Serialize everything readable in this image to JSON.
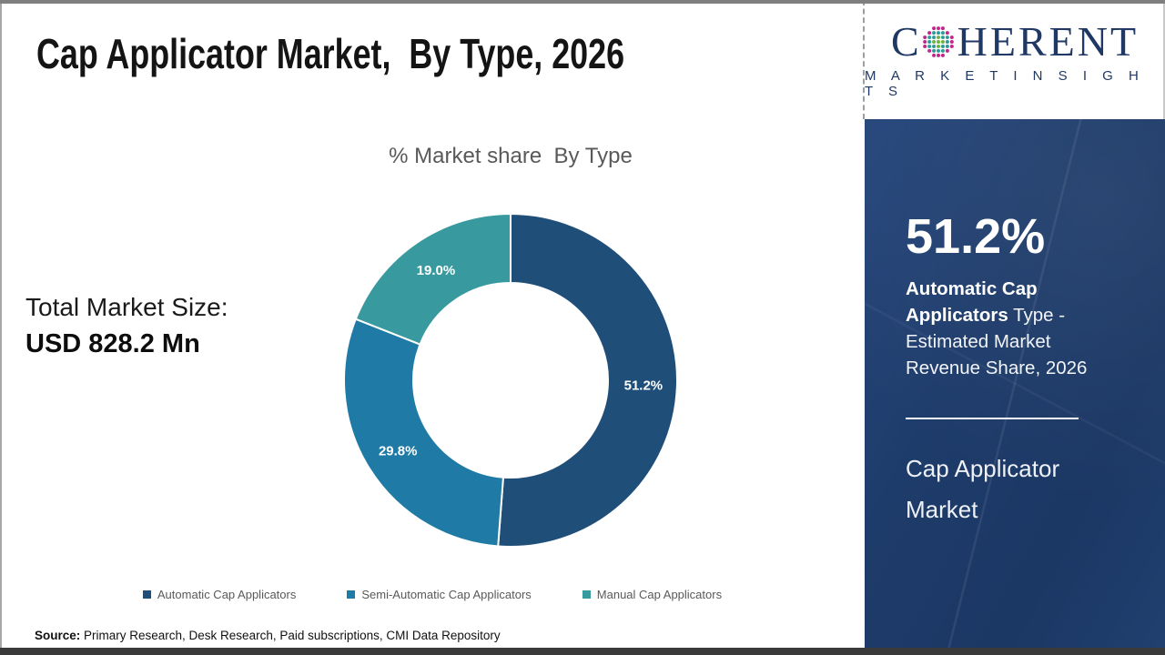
{
  "page": {
    "title": "Cap Applicator Market,  By Type, 2026",
    "source_label": "Source:",
    "source_text": " Primary Research, Desk Research, Paid subscriptions, CMI Data Repository"
  },
  "brand": {
    "name_first_letter": "C",
    "name_rest": "HERENT",
    "tagline": "M A R K E T   I N S I G H T S",
    "navy": "#1F3864",
    "globe_colors": {
      "outer": "#C2268C",
      "mid": "#2E9B9B",
      "inner": "#6DB33F"
    }
  },
  "left_panel": {
    "total_label": "Total Market Size:",
    "total_value": "USD 828.2 Mn"
  },
  "chart_data": {
    "type": "pie",
    "subtype": "donut",
    "title": "% Market share  By Type",
    "categories": [
      "Automatic Cap Applicators",
      "Semi-Automatic Cap Applicators",
      "Manual Cap Applicators"
    ],
    "values": [
      51.2,
      29.8,
      19.0
    ],
    "labels": [
      "51.2%",
      "29.8%",
      "19.0%"
    ],
    "colors": [
      "#1F4E79",
      "#1F7BA6",
      "#38999F"
    ],
    "start_angle_deg": 0,
    "outer_radius": 183,
    "inner_radius": 107,
    "label_radius": 146,
    "legend_position": "bottom"
  },
  "sidebar": {
    "stat_value": "51.2%",
    "stat_bold": "Automatic Cap Applicators",
    "stat_rest": " Type - Estimated Market Revenue Share, 2026",
    "panel_title": "Cap Applicator Market",
    "bg": "#1E3C6B"
  }
}
